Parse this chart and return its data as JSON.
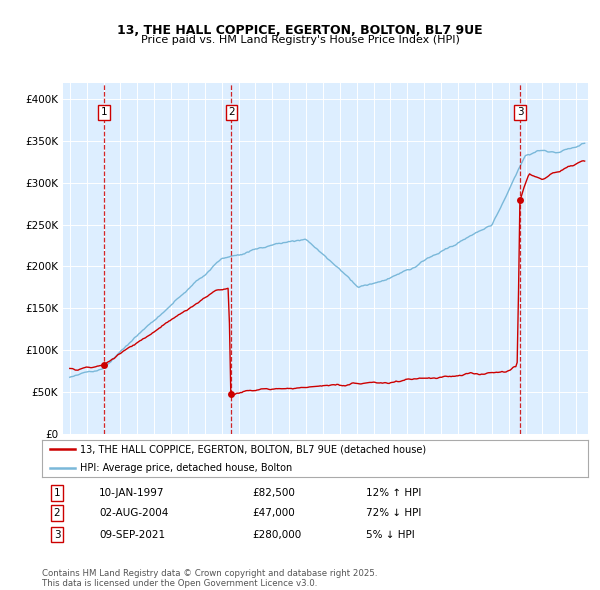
{
  "title_line1": "13, THE HALL COPPICE, EGERTON, BOLTON, BL7 9UE",
  "title_line2": "Price paid vs. HM Land Registry's House Price Index (HPI)",
  "background_color": "#ffffff",
  "plot_bg_color": "#ddeeff",
  "ylim": [
    0,
    420000
  ],
  "yticks": [
    0,
    50000,
    100000,
    150000,
    200000,
    250000,
    300000,
    350000,
    400000
  ],
  "ytick_labels": [
    "£0",
    "£50K",
    "£100K",
    "£150K",
    "£200K",
    "£250K",
    "£300K",
    "£350K",
    "£400K"
  ],
  "xlim_start": 1994.6,
  "xlim_end": 2025.7,
  "sale_dates": [
    1997.03,
    2004.58,
    2021.69
  ],
  "sale_prices": [
    82500,
    47000,
    280000
  ],
  "sale_labels": [
    "1",
    "2",
    "3"
  ],
  "legend_property": "13, THE HALL COPPICE, EGERTON, BOLTON, BL7 9UE (detached house)",
  "legend_hpi": "HPI: Average price, detached house, Bolton",
  "table_rows": [
    [
      "1",
      "10-JAN-1997",
      "£82,500",
      "12% ↑ HPI"
    ],
    [
      "2",
      "02-AUG-2004",
      "£47,000",
      "72% ↓ HPI"
    ],
    [
      "3",
      "09-SEP-2021",
      "£280,000",
      "5% ↓ HPI"
    ]
  ],
  "footnote": "Contains HM Land Registry data © Crown copyright and database right 2025.\nThis data is licensed under the Open Government Licence v3.0.",
  "line_color_property": "#cc0000",
  "line_color_hpi": "#7ab8d9",
  "vline_color": "#cc0000",
  "marker_color": "#cc0000",
  "label_box_color": "#cc0000"
}
